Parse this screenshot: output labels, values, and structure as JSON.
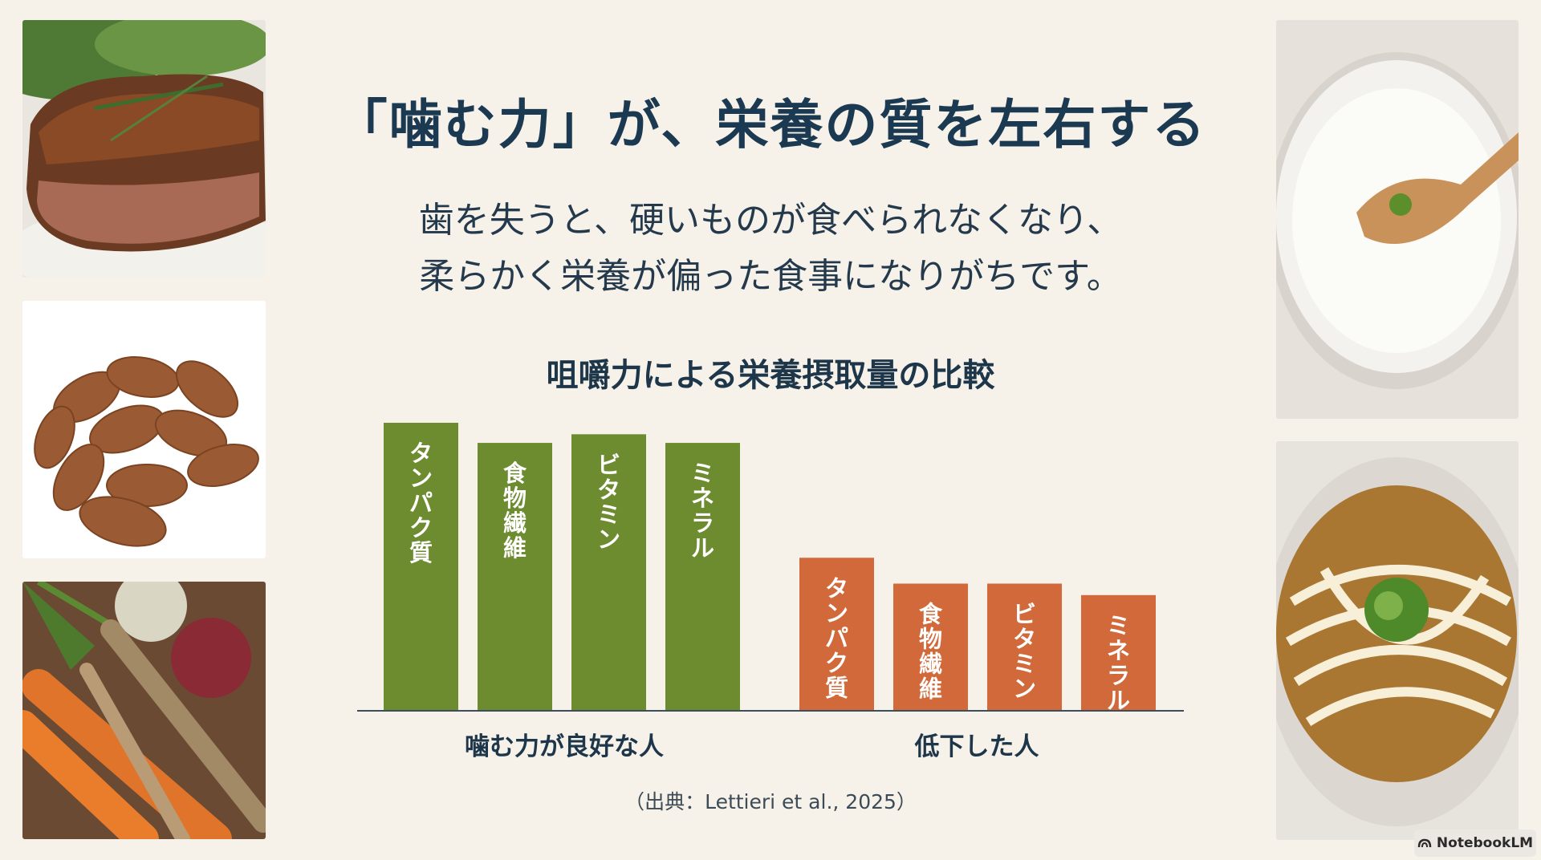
{
  "slide": {
    "title": "「噛む力」が、栄養の質を左右する",
    "body_lines": [
      "歯を失うと、硬いものが食べられなくなり、",
      "柔らかく栄養が偏った食事になりがちです。"
    ],
    "source": "（出典：Lettieri et al., 2025）",
    "watermark": "NotebookLM"
  },
  "images": {
    "steak": "grilled steak with rosemary",
    "almond": "almonds",
    "vegetables": "carrots, burdock and beets",
    "porridge": "rice porridge with spoon",
    "udon": "udon noodle soup"
  },
  "chart_data": {
    "type": "bar",
    "title": "咀嚼力による栄養摂取量の比較",
    "groups": [
      {
        "name": "噛む力が良好な人",
        "color": "#6d8b2f",
        "bars": [
          {
            "label": "タンパク質",
            "value": 100
          },
          {
            "label": "食物繊維",
            "value": 93
          },
          {
            "label": "ビタミン",
            "value": 96
          },
          {
            "label": "ミネラル",
            "value": 93
          }
        ]
      },
      {
        "name": "低下した人",
        "color": "#d2693a",
        "bars": [
          {
            "label": "タンパク質",
            "value": 53
          },
          {
            "label": "食物繊維",
            "value": 44
          },
          {
            "label": "ビタミン",
            "value": 44
          },
          {
            "label": "ミネラル",
            "value": 40
          }
        ]
      }
    ],
    "axes_visible": false,
    "ylim": [
      0,
      100
    ]
  }
}
